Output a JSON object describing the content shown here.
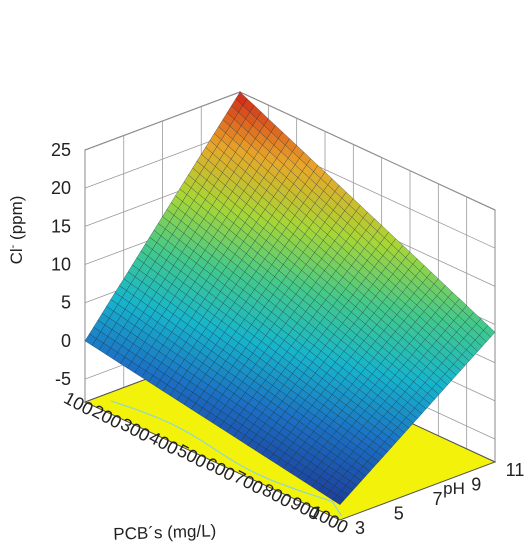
{
  "chart_data": {
    "type": "surface3d",
    "title": "",
    "xlabel": "PCB´s (mg/L)",
    "ylabel": "pH",
    "zlabel_base": "Cl",
    "zlabel_sup": "-",
    "zlabel_unit": " (ppm)",
    "x_ticks": [
      "100",
      "200",
      "300",
      "400",
      "500",
      "600",
      "700",
      "800",
      "900",
      "1000"
    ],
    "y_ticks": [
      "3",
      "5",
      "7",
      "9",
      "11"
    ],
    "z_ticks": [
      "-5",
      "0",
      "5",
      "10",
      "15",
      "20",
      "25"
    ],
    "xlim": [
      100,
      1000
    ],
    "ylim": [
      3,
      11
    ],
    "zlim": [
      -8,
      25
    ],
    "corner_values": [
      {
        "x": 100,
        "y": 3,
        "z": 0
      },
      {
        "x": 1000,
        "y": 3,
        "z": -6
      },
      {
        "x": 100,
        "y": 11,
        "z": 25
      },
      {
        "x": 1000,
        "y": 11,
        "z": 9
      }
    ],
    "floor_color": "#f2f20a",
    "colormap": [
      "#1d3f9a",
      "#1c6fc4",
      "#17b5cc",
      "#44c98a",
      "#a8d636",
      "#e8a62a",
      "#d22418"
    ]
  }
}
